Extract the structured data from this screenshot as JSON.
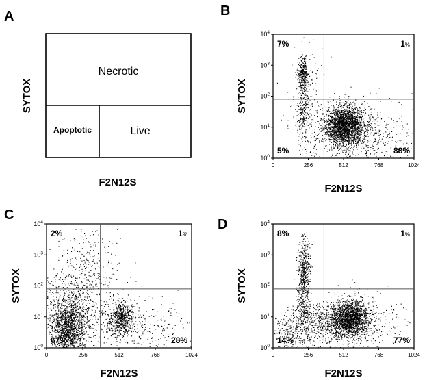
{
  "figure": {
    "panel_a": {
      "letter": "A",
      "ylabel": "SYTOX",
      "xlabel": "F2N12S",
      "regions": {
        "top": "Necrotic",
        "bottom_left": "Apoptotic",
        "bottom_right": "Live"
      }
    }
  },
  "chart_data": [
    {
      "panel": "B",
      "type": "scatter",
      "xlabel": "F2N12S",
      "ylabel": "SYTOX",
      "xlim": [
        0,
        1024
      ],
      "ylim": [
        1,
        10000
      ],
      "yscale": "log",
      "xticks": [
        "0",
        "256",
        "512",
        "768",
        "1024"
      ],
      "yticks": [
        "10^0",
        "10^1",
        "10^2",
        "10^3",
        "10^4"
      ],
      "gate_x": 370,
      "gate_y": 80,
      "quadrants": {
        "top_left": "7%",
        "top_right": "1",
        "bottom_left": "5%",
        "bottom_right": "88%"
      },
      "unit": "%",
      "clusters": [
        {
          "x": 520,
          "log_y": 1.05,
          "sx": 70,
          "sy": 0.32,
          "n": 2300
        },
        {
          "x": 215,
          "log_y": 2.75,
          "sx": 20,
          "sy": 0.25,
          "n": 320
        },
        {
          "x": 215,
          "log_y": 1.6,
          "sx": 22,
          "sy": 0.45,
          "n": 250
        },
        {
          "x": 600,
          "log_y": 0.8,
          "sx": 210,
          "sy": 0.5,
          "n": 700
        },
        {
          "x": 240,
          "log_y": 2.0,
          "sx": 70,
          "sy": 1.0,
          "n": 120
        }
      ]
    },
    {
      "panel": "C",
      "type": "scatter",
      "xlabel": "F2N12S",
      "ylabel": "SYTOX",
      "xlim": [
        0,
        1024
      ],
      "ylim": [
        1,
        10000
      ],
      "yscale": "log",
      "xticks": [
        "0",
        "256",
        "512",
        "768",
        "1024"
      ],
      "yticks": [
        "10^0",
        "10^1",
        "10^2",
        "10^3",
        "10^4"
      ],
      "gate_x": 380,
      "gate_y": 80,
      "quadrants": {
        "top_left": "2%",
        "top_right": "1",
        "bottom_left": "67%",
        "bottom_right": "28%"
      },
      "unit": "%",
      "clusters": [
        {
          "x": 150,
          "log_y": 0.6,
          "sx": 60,
          "sy": 0.45,
          "n": 1400
        },
        {
          "x": 530,
          "log_y": 0.95,
          "sx": 45,
          "sy": 0.3,
          "n": 650
        },
        {
          "x": 200,
          "log_y": 1.5,
          "sx": 130,
          "sy": 0.7,
          "n": 700
        },
        {
          "x": 280,
          "log_y": 2.7,
          "sx": 110,
          "sy": 0.7,
          "n": 200
        },
        {
          "x": 650,
          "log_y": 0.6,
          "sx": 220,
          "sy": 0.5,
          "n": 350
        }
      ]
    },
    {
      "panel": "D",
      "type": "scatter",
      "xlabel": "F2N12S",
      "ylabel": "SYTOX",
      "xlim": [
        0,
        1024
      ],
      "ylim": [
        1,
        10000
      ],
      "yscale": "log",
      "xticks": [
        "0",
        "256",
        "512",
        "768",
        "1024"
      ],
      "yticks": [
        "10^0",
        "10^1",
        "10^2",
        "10^3",
        "10^4"
      ],
      "gate_x": 370,
      "gate_y": 80,
      "quadrants": {
        "top_left": "8%",
        "top_right": "1",
        "bottom_left": "14%",
        "bottom_right": "77%"
      },
      "unit": "%",
      "clusters": [
        {
          "x": 560,
          "log_y": 0.95,
          "sx": 65,
          "sy": 0.3,
          "n": 1700
        },
        {
          "x": 420,
          "log_y": 0.8,
          "sx": 130,
          "sy": 0.35,
          "n": 700
        },
        {
          "x": 225,
          "log_y": 2.6,
          "sx": 22,
          "sy": 0.45,
          "n": 400
        },
        {
          "x": 215,
          "log_y": 1.5,
          "sx": 25,
          "sy": 0.5,
          "n": 300
        },
        {
          "x": 120,
          "log_y": 0.45,
          "sx": 70,
          "sy": 0.35,
          "n": 250
        },
        {
          "x": 600,
          "log_y": 0.8,
          "sx": 220,
          "sy": 0.5,
          "n": 350
        }
      ]
    }
  ]
}
